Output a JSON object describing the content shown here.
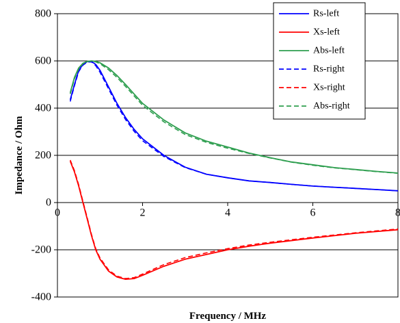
{
  "chart_data": {
    "type": "line",
    "title": "",
    "xlabel": "Frequency / MHz",
    "ylabel": "Impedance / Ohm",
    "xlim": [
      0,
      8
    ],
    "ylim": [
      -400,
      800
    ],
    "x_ticks": [
      0,
      2,
      4,
      6,
      8
    ],
    "y_ticks": [
      -400,
      -200,
      0,
      200,
      400,
      600,
      800
    ],
    "grid": "horizontal",
    "legend_position": "top-right",
    "series": [
      {
        "name": "Rs-left",
        "color": "#0000ff",
        "dash": "solid",
        "x": [
          0.3,
          0.4,
          0.5,
          0.6,
          0.7,
          0.8,
          0.9,
          1.0,
          1.2,
          1.4,
          1.6,
          1.8,
          2.0,
          2.5,
          3.0,
          3.5,
          4.0,
          4.5,
          5.0,
          5.5,
          6.0,
          6.5,
          7.0,
          7.5,
          8.0
        ],
        "y": [
          435,
          500,
          560,
          585,
          597,
          598,
          585,
          560,
          490,
          420,
          360,
          310,
          270,
          200,
          150,
          120,
          105,
          92,
          85,
          77,
          70,
          65,
          60,
          55,
          50
        ]
      },
      {
        "name": "Xs-left",
        "color": "#ff0000",
        "dash": "solid",
        "x": [
          0.3,
          0.4,
          0.5,
          0.6,
          0.7,
          0.8,
          0.9,
          1.0,
          1.2,
          1.4,
          1.6,
          1.8,
          2.0,
          2.5,
          3.0,
          3.5,
          4.0,
          4.5,
          5.0,
          6.0,
          7.0,
          8.0
        ],
        "y": [
          175,
          130,
          70,
          0,
          -70,
          -140,
          -200,
          -240,
          -290,
          -315,
          -325,
          -322,
          -308,
          -270,
          -240,
          -220,
          -200,
          -185,
          -172,
          -150,
          -130,
          -115
        ]
      },
      {
        "name": "Abs-left",
        "color": "#2e9e4f",
        "dash": "solid",
        "x": [
          0.3,
          0.4,
          0.5,
          0.6,
          0.7,
          0.8,
          0.9,
          1.0,
          1.2,
          1.4,
          1.6,
          1.8,
          2.0,
          2.5,
          3.0,
          3.5,
          4.0,
          4.5,
          5.0,
          5.5,
          6.0,
          6.5,
          7.0,
          7.5,
          8.0
        ],
        "y": [
          465,
          530,
          570,
          590,
          598,
          600,
          598,
          592,
          570,
          538,
          500,
          460,
          420,
          350,
          295,
          260,
          235,
          210,
          190,
          172,
          160,
          148,
          140,
          132,
          125
        ]
      },
      {
        "name": "Rs-right",
        "color": "#0000ff",
        "dash": "dashed",
        "x": [
          0.3,
          0.4,
          0.5,
          0.6,
          0.7,
          0.8,
          0.9,
          1.0,
          1.2,
          1.4,
          1.6,
          1.8,
          2.0,
          2.5,
          3.0,
          3.5,
          4.0,
          4.5,
          5.0,
          5.5,
          6.0,
          6.5,
          7.0,
          7.5,
          8.0
        ],
        "y": [
          428,
          495,
          555,
          582,
          595,
          596,
          580,
          552,
          482,
          412,
          352,
          302,
          262,
          195,
          148,
          120,
          105,
          92,
          85,
          77,
          70,
          65,
          60,
          55,
          50
        ]
      },
      {
        "name": "Xs-right",
        "color": "#ff0000",
        "dash": "dashed",
        "x": [
          0.3,
          0.4,
          0.5,
          0.6,
          0.7,
          0.8,
          0.9,
          1.0,
          1.2,
          1.4,
          1.6,
          1.8,
          2.0,
          2.5,
          3.0,
          3.5,
          4.0,
          4.5,
          5.0,
          6.0,
          7.0,
          8.0
        ],
        "y": [
          180,
          135,
          75,
          5,
          -65,
          -135,
          -195,
          -235,
          -285,
          -312,
          -322,
          -318,
          -303,
          -263,
          -233,
          -213,
          -195,
          -180,
          -168,
          -147,
          -128,
          -112
        ]
      },
      {
        "name": "Abs-right",
        "color": "#2e9e4f",
        "dash": "dashed",
        "x": [
          0.3,
          0.4,
          0.5,
          0.6,
          0.7,
          0.8,
          0.9,
          1.0,
          1.2,
          1.4,
          1.6,
          1.8,
          2.0,
          2.5,
          3.0,
          3.5,
          4.0,
          4.5,
          5.0,
          5.5,
          6.0,
          6.5,
          7.0,
          7.5,
          8.0
        ],
        "y": [
          460,
          525,
          566,
          588,
          597,
          599,
          596,
          588,
          563,
          530,
          492,
          452,
          412,
          342,
          288,
          255,
          230,
          208,
          189,
          171,
          158,
          147,
          139,
          131,
          124
        ]
      }
    ]
  }
}
